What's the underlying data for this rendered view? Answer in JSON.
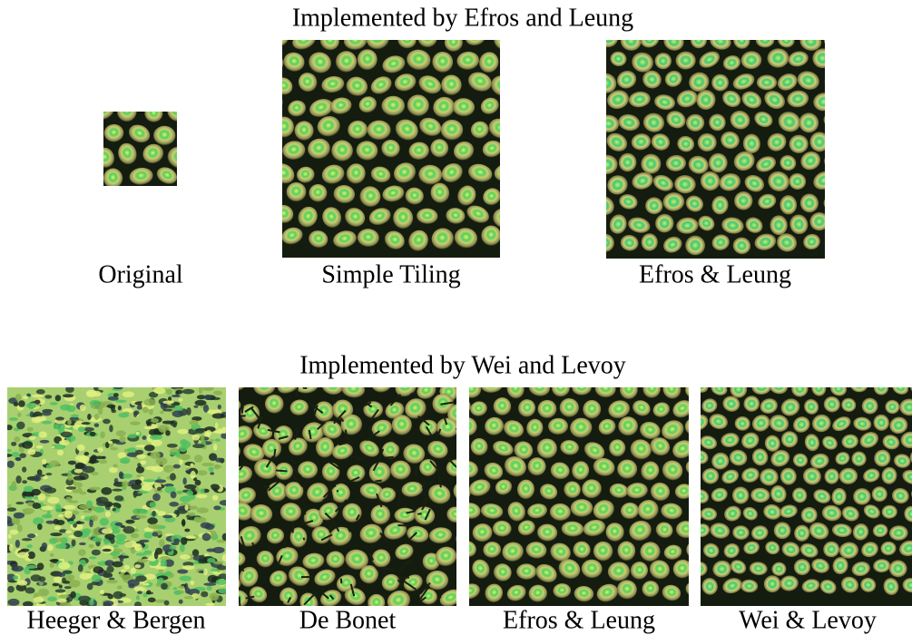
{
  "top": {
    "title": "Implemented by Efros and Leung",
    "captions": [
      "Original",
      "Simple Tiling",
      "Efros & Leung"
    ]
  },
  "bottom": {
    "title": "Implemented by Wei and Levoy",
    "captions": [
      "Heeger & Bergen",
      "De Bonet",
      "Efros & Leung",
      "Wei & Levoy"
    ]
  }
}
